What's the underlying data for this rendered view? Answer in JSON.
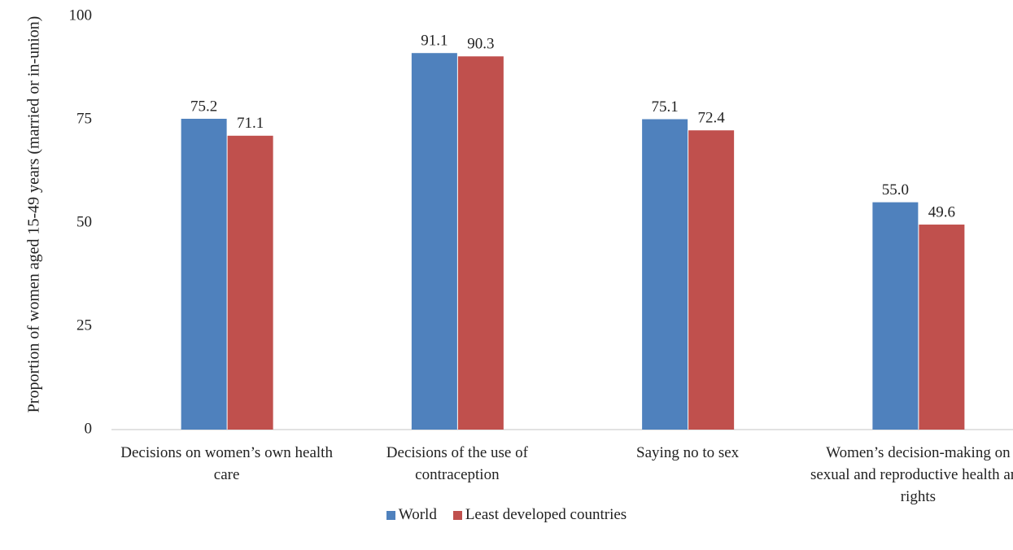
{
  "chart_data": {
    "type": "bar",
    "y_label": "Proportion of women aged 15-49 years (married or in-union)",
    "categories": [
      "Decisions on women’s own health care",
      "Decisions of the use of contraception",
      "Saying no to sex",
      "Women’s decision-making on sexual and reproductive health and rights"
    ],
    "series": [
      {
        "name": "World",
        "color": "#4f81bd",
        "values": [
          75.2,
          91.1,
          75.1,
          55.0
        ],
        "value_labels": [
          "75.2",
          "91.1",
          "75.1",
          "55.0"
        ]
      },
      {
        "name": "Least developed countries",
        "color": "#c0504d",
        "values": [
          71.1,
          90.3,
          72.4,
          49.6
        ],
        "value_labels": [
          "71.1",
          "90.3",
          "72.4",
          "49.6"
        ]
      }
    ],
    "ylim": [
      0,
      100
    ],
    "yticks": [
      0,
      25,
      50,
      75,
      100
    ],
    "grid": false,
    "legend": "bottom"
  }
}
